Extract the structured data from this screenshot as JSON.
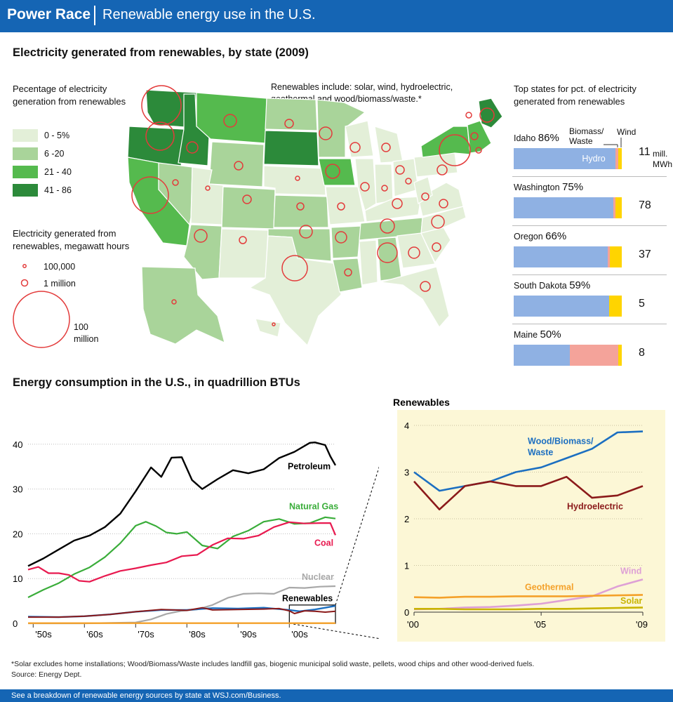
{
  "header": {
    "brand": "Power Race",
    "subtitle": "Renewable energy use in the U.S."
  },
  "map_section": {
    "title": "Electricity generated from renewables, by state (2009)",
    "legend_title": "Pecentage of electricity generation from renewables",
    "legend": [
      {
        "label": "0 - 5%",
        "color": "#e3efd8"
      },
      {
        "label": "6 -20",
        "color": "#a9d49a"
      },
      {
        "label": "21 - 40",
        "color": "#55ba4e"
      },
      {
        "label": "41 - 86",
        "color": "#2c8a3a"
      }
    ],
    "size_legend_title": "Electricity generated from renewables, megawatt hours",
    "size_legend": [
      "100,000",
      "1 million",
      "100 million"
    ],
    "note": "Renewables include: solar, wind, hydroelectric, geothermal and wood/biomass/waste.*"
  },
  "top_states": {
    "title": "Top states for pct. of electricity generated from renewables",
    "header_labels": {
      "biomass": "Biomass/ Waste",
      "wind": "Wind",
      "hydro": "Hydro"
    },
    "unit": "mill. MWh",
    "colors": {
      "hydro": "#8fb1e3",
      "biomass": "#f4a39a",
      "wind": "#ffd400"
    },
    "states": [
      {
        "name": "Idaho",
        "pct": "86%",
        "value": "11",
        "hydro": 0.94,
        "biomass": 0.03,
        "wind": 0.03
      },
      {
        "name": "Washington",
        "pct": "75%",
        "value": "78",
        "hydro": 0.92,
        "biomass": 0.02,
        "wind": 0.06
      },
      {
        "name": "Oregon",
        "pct": "66%",
        "value": "37",
        "hydro": 0.87,
        "biomass": 0.02,
        "wind": 0.11
      },
      {
        "name": "South Dakota",
        "pct": "59%",
        "value": "5",
        "hydro": 0.88,
        "biomass": 0.0,
        "wind": 0.12
      },
      {
        "name": "Maine",
        "pct": "50%",
        "value": "8",
        "hydro": 0.52,
        "biomass": 0.45,
        "wind": 0.03
      }
    ]
  },
  "consumption_title": "Energy consumption in the U.S., in quadrillion BTUs",
  "chart_data": [
    {
      "type": "line",
      "title": "Energy consumption in the U.S., in quadrillion BTUs",
      "x_tick_labels": [
        "'50s",
        "'60s",
        "'70s",
        "'80s",
        "'90s",
        "'00s"
      ],
      "xlim": [
        1949,
        2009
      ],
      "ylim": [
        0,
        42
      ],
      "y_ticks": [
        0,
        10,
        20,
        30,
        40
      ],
      "series": [
        {
          "name": "Petroleum",
          "color": "#000000",
          "x": [
            1949,
            1952,
            1955,
            1958,
            1961,
            1964,
            1967,
            1970,
            1973,
            1975,
            1977,
            1979,
            1981,
            1983,
            1986,
            1989,
            1992,
            1995,
            1998,
            2001,
            2004,
            2005,
            2007,
            2008,
            2009
          ],
          "y": [
            12.8,
            14.5,
            16.5,
            18.5,
            19.6,
            21.5,
            24.5,
            29.5,
            34.8,
            32.7,
            37,
            37.1,
            32,
            30,
            32.2,
            34.2,
            33.5,
            34.4,
            36.9,
            38.3,
            40.3,
            40.4,
            39.8,
            37.3,
            35.3
          ]
        },
        {
          "name": "Natural Gas",
          "color": "#3aad3a",
          "x": [
            1949,
            1952,
            1955,
            1958,
            1961,
            1964,
            1967,
            1970,
            1972,
            1974,
            1976,
            1978,
            1980,
            1983,
            1986,
            1989,
            1992,
            1995,
            1998,
            2001,
            2004,
            2007,
            2009
          ],
          "y": [
            5.8,
            7.5,
            9.0,
            11.0,
            12.5,
            14.8,
            17.9,
            21.8,
            22.7,
            21.7,
            20.3,
            20.0,
            20.4,
            17.4,
            16.7,
            19.4,
            20.7,
            22.7,
            23.3,
            22.2,
            22.4,
            23.7,
            23.4
          ]
        },
        {
          "name": "Coal",
          "color": "#e8194f",
          "x": [
            1949,
            1951,
            1953,
            1955,
            1957,
            1959,
            1961,
            1964,
            1967,
            1970,
            1973,
            1976,
            1979,
            1982,
            1985,
            1988,
            1991,
            1994,
            1997,
            2000,
            2003,
            2006,
            2008,
            2009
          ],
          "y": [
            12.0,
            12.6,
            11.2,
            11.2,
            10.8,
            9.5,
            9.3,
            10.6,
            11.7,
            12.3,
            13.0,
            13.6,
            15.0,
            15.3,
            17.5,
            19.0,
            18.9,
            19.6,
            21.5,
            22.6,
            22.3,
            22.4,
            22.4,
            19.7
          ]
        },
        {
          "name": "Nuclear",
          "color": "#a8a8a8",
          "x": [
            1949,
            1957,
            1960,
            1965,
            1970,
            1973,
            1976,
            1979,
            1982,
            1985,
            1988,
            1991,
            1994,
            1997,
            2000,
            2003,
            2006,
            2009
          ],
          "y": [
            0,
            0,
            0,
            0.1,
            0.2,
            0.9,
            2.1,
            2.8,
            3.1,
            4.1,
            5.7,
            6.6,
            6.7,
            6.6,
            8.0,
            7.9,
            8.2,
            8.3
          ]
        },
        {
          "name": "Renewables",
          "color": "#1c6fc1",
          "x": [
            1949,
            1955,
            1960,
            1965,
            1970,
            1975,
            1980,
            1985,
            1990,
            1995,
            2000,
            2002,
            2005,
            2007,
            2009
          ],
          "y": [
            1.5,
            1.4,
            1.6,
            2.0,
            2.6,
            3.0,
            3.0,
            3.4,
            3.3,
            3.5,
            3.0,
            2.7,
            3.1,
            3.5,
            3.9
          ]
        },
        {
          "name": "Hydroelectric",
          "color": "#8b1a1a",
          "x": [
            1949,
            1955,
            1960,
            1965,
            1970,
            1975,
            1980,
            1983,
            1985,
            1990,
            1995,
            1998,
            2000,
            2001,
            2003,
            2005,
            2007,
            2009
          ],
          "y": [
            1.4,
            1.4,
            1.6,
            2.0,
            2.6,
            3.1,
            2.9,
            3.5,
            3.0,
            3.1,
            3.2,
            3.3,
            2.8,
            2.2,
            2.8,
            2.7,
            2.5,
            2.7
          ]
        }
      ],
      "inset_label": "Renewables"
    },
    {
      "type": "line",
      "title": "Renewables",
      "x_tick_labels": [
        "'00",
        "'05",
        "'09"
      ],
      "xlim": [
        2000,
        2009
      ],
      "ylim": [
        0,
        4
      ],
      "y_ticks": [
        0,
        1,
        2,
        3,
        4
      ],
      "series": [
        {
          "name": "Wood/Biomass/ Waste",
          "color": "#1c6fc1",
          "x": [
            2000,
            2001,
            2002,
            2003,
            2004,
            2005,
            2006,
            2007,
            2008,
            2009
          ],
          "y": [
            3.0,
            2.6,
            2.7,
            2.8,
            3.0,
            3.1,
            3.3,
            3.5,
            3.85,
            3.87
          ]
        },
        {
          "name": "Hydroelectric",
          "color": "#8b1a1a",
          "x": [
            2000,
            2001,
            2002,
            2003,
            2004,
            2005,
            2006,
            2007,
            2008,
            2009
          ],
          "y": [
            2.8,
            2.2,
            2.7,
            2.8,
            2.7,
            2.7,
            2.9,
            2.45,
            2.5,
            2.7
          ]
        },
        {
          "name": "Wind",
          "color": "#dea0d6",
          "x": [
            2000,
            2001,
            2002,
            2003,
            2004,
            2005,
            2006,
            2007,
            2008,
            2009
          ],
          "y": [
            0.06,
            0.07,
            0.1,
            0.11,
            0.14,
            0.18,
            0.26,
            0.34,
            0.55,
            0.7
          ]
        },
        {
          "name": "Geothermal",
          "color": "#f4a12a",
          "x": [
            2000,
            2001,
            2002,
            2003,
            2004,
            2005,
            2006,
            2007,
            2008,
            2009
          ],
          "y": [
            0.32,
            0.31,
            0.33,
            0.33,
            0.34,
            0.34,
            0.34,
            0.35,
            0.36,
            0.37
          ]
        },
        {
          "name": "Solar",
          "color": "#c9b400",
          "x": [
            2000,
            2001,
            2002,
            2003,
            2004,
            2005,
            2006,
            2007,
            2008,
            2009
          ],
          "y": [
            0.07,
            0.07,
            0.06,
            0.06,
            0.06,
            0.07,
            0.07,
            0.08,
            0.09,
            0.1
          ]
        }
      ]
    }
  ],
  "footnote": "*Solar excludes home installations; Wood/Biomass/Waste includes landfill gas, biogenic municipal solid waste, pellets, wood chips and other wood-derived fuels.",
  "source": "Source: Energy Dept.",
  "footer": "See a breakdown of renewable energy sources by state at WSJ.com/Business."
}
